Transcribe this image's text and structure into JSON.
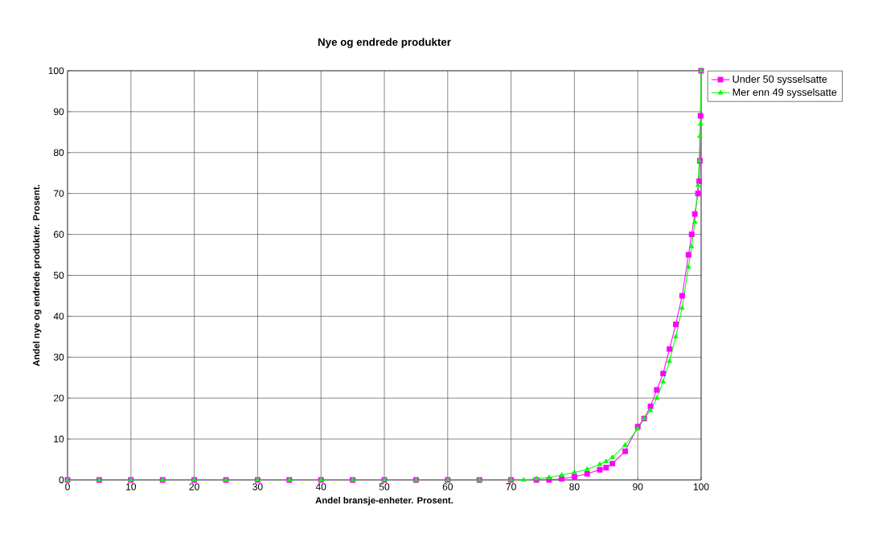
{
  "chart_data": {
    "type": "line",
    "title": "Nye og endrede produkter",
    "xlabel": "Andel bransje-enheter. Prosent.",
    "ylabel": "Andel nye og endrede produkter. Prosent.",
    "xlim": [
      0,
      100
    ],
    "ylim": [
      0,
      100
    ],
    "xticks": [
      0,
      10,
      20,
      30,
      40,
      50,
      60,
      70,
      80,
      90,
      100
    ],
    "yticks": [
      0,
      10,
      20,
      30,
      40,
      50,
      60,
      70,
      80,
      90,
      100
    ],
    "grid": true,
    "legend": "top right",
    "series": [
      {
        "name": "Under 50 sysselsatte",
        "color": "#ff00ff",
        "marker": "square",
        "x": [
          0,
          5,
          10,
          15,
          20,
          25,
          30,
          35,
          40,
          45,
          50,
          55,
          60,
          65,
          70,
          74,
          76,
          78,
          80,
          82,
          84,
          85,
          86,
          88,
          90,
          91,
          92,
          93,
          94,
          95,
          96,
          97,
          98,
          98.5,
          99,
          99.5,
          99.7,
          99.8,
          99.9,
          100
        ],
        "values": [
          0,
          0,
          0,
          0,
          0,
          0,
          0,
          0,
          0,
          0,
          0,
          0,
          0,
          0,
          0,
          0,
          0,
          0.3,
          0.8,
          1.5,
          2.5,
          3,
          4,
          7,
          13,
          15,
          18,
          22,
          26,
          32,
          38,
          45,
          55,
          60,
          65,
          70,
          73,
          78,
          89,
          100
        ]
      },
      {
        "name": "Mer enn 49 sysselsatte",
        "color": "#00ff00",
        "marker": "triangle",
        "x": [
          0,
          5,
          10,
          15,
          20,
          25,
          30,
          35,
          40,
          45,
          50,
          55,
          60,
          65,
          70,
          72,
          74,
          76,
          78,
          80,
          82,
          84,
          85,
          86,
          88,
          90,
          91,
          92,
          93,
          94,
          95,
          96,
          97,
          98,
          98.5,
          99,
          99.5,
          99.7,
          99.8,
          99.9,
          100
        ],
        "values": [
          0,
          0,
          0,
          0,
          0,
          0,
          0,
          0,
          0,
          0,
          0,
          0,
          0,
          0,
          0,
          0,
          0.3,
          0.6,
          1.2,
          1.8,
          2.6,
          3.8,
          4.5,
          5.5,
          8.5,
          12.5,
          15,
          17,
          20,
          24,
          29,
          35,
          42,
          52,
          57,
          63,
          72,
          78,
          84,
          87,
          100
        ]
      }
    ]
  }
}
